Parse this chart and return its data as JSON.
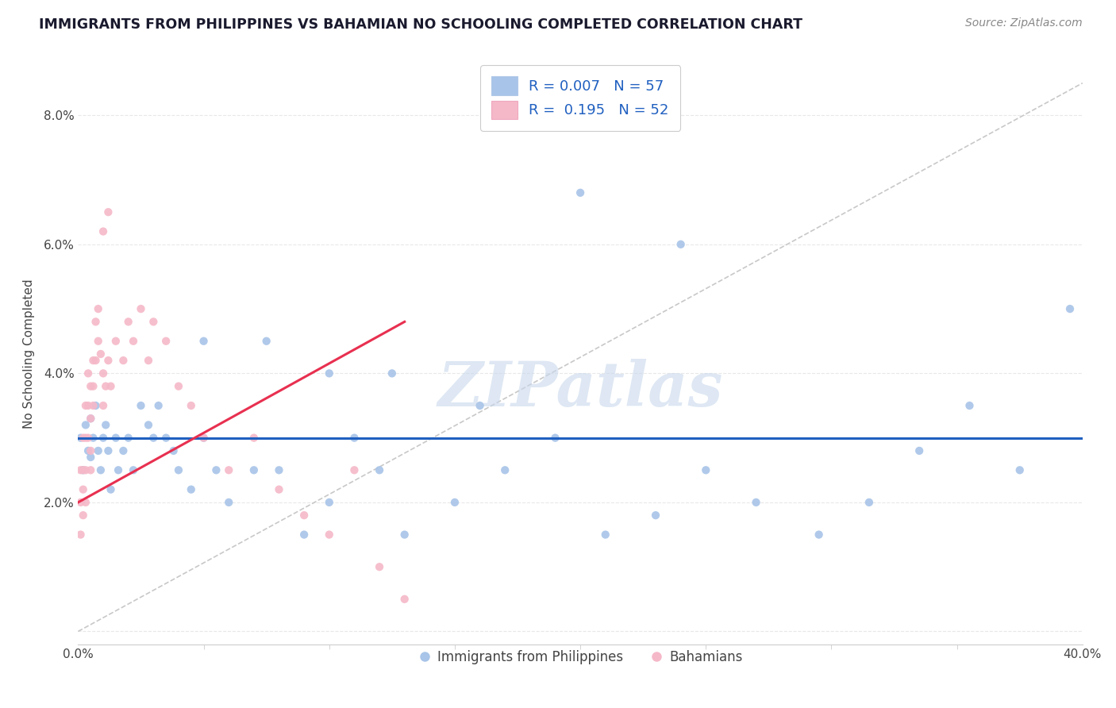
{
  "title": "IMMIGRANTS FROM PHILIPPINES VS BAHAMIAN NO SCHOOLING COMPLETED CORRELATION CHART",
  "source_text": "Source: ZipAtlas.com",
  "ylabel": "No Schooling Completed",
  "xlim": [
    0.0,
    0.4
  ],
  "ylim": [
    -0.002,
    0.088
  ],
  "ytick_vals": [
    0.0,
    0.02,
    0.04,
    0.06,
    0.08
  ],
  "ytick_labels": [
    "",
    "2.0%",
    "4.0%",
    "6.0%",
    "8.0%"
  ],
  "xtick_vals": [
    0.0,
    0.4
  ],
  "xtick_labels": [
    "0.0%",
    "40.0%"
  ],
  "scatter_blue_color": "#a8c4e8",
  "scatter_pink_color": "#f5b8c8",
  "trend_blue_color": "#2060c0",
  "trend_pink_color": "#e83050",
  "ref_line_color": "#c8c8c8",
  "background_color": "#ffffff",
  "grid_color": "#e8e8e8",
  "title_color": "#1a1a2e",
  "source_color": "#888888",
  "watermark_text": "ZIPatlas",
  "legend_label1": "R = 0.007   N = 57",
  "legend_label2": "R =  0.195   N = 52",
  "legend_text_color": "#2060c0",
  "blue_x": [
    0.001,
    0.002,
    0.003,
    0.004,
    0.005,
    0.005,
    0.006,
    0.007,
    0.008,
    0.009,
    0.01,
    0.011,
    0.012,
    0.013,
    0.015,
    0.016,
    0.018,
    0.02,
    0.022,
    0.025,
    0.028,
    0.03,
    0.032,
    0.035,
    0.038,
    0.04,
    0.045,
    0.05,
    0.055,
    0.06,
    0.07,
    0.08,
    0.09,
    0.1,
    0.11,
    0.12,
    0.13,
    0.15,
    0.17,
    0.19,
    0.21,
    0.23,
    0.25,
    0.27,
    0.295,
    0.315,
    0.335,
    0.355,
    0.375,
    0.395,
    0.05,
    0.075,
    0.1,
    0.125,
    0.16,
    0.2,
    0.24
  ],
  "blue_y": [
    0.03,
    0.025,
    0.032,
    0.028,
    0.033,
    0.027,
    0.03,
    0.035,
    0.028,
    0.025,
    0.03,
    0.032,
    0.028,
    0.022,
    0.03,
    0.025,
    0.028,
    0.03,
    0.025,
    0.035,
    0.032,
    0.03,
    0.035,
    0.03,
    0.028,
    0.025,
    0.022,
    0.03,
    0.025,
    0.02,
    0.025,
    0.025,
    0.015,
    0.02,
    0.03,
    0.025,
    0.015,
    0.02,
    0.025,
    0.03,
    0.015,
    0.018,
    0.025,
    0.02,
    0.015,
    0.02,
    0.028,
    0.035,
    0.025,
    0.05,
    0.045,
    0.045,
    0.04,
    0.04,
    0.035,
    0.068,
    0.06
  ],
  "pink_x": [
    0.001,
    0.001,
    0.001,
    0.002,
    0.002,
    0.002,
    0.002,
    0.003,
    0.003,
    0.003,
    0.003,
    0.004,
    0.004,
    0.004,
    0.005,
    0.005,
    0.005,
    0.005,
    0.006,
    0.006,
    0.006,
    0.007,
    0.007,
    0.008,
    0.008,
    0.009,
    0.01,
    0.01,
    0.011,
    0.012,
    0.013,
    0.015,
    0.018,
    0.02,
    0.022,
    0.025,
    0.028,
    0.03,
    0.035,
    0.04,
    0.045,
    0.05,
    0.06,
    0.07,
    0.08,
    0.09,
    0.1,
    0.11,
    0.12,
    0.13,
    0.01,
    0.012
  ],
  "pink_y": [
    0.025,
    0.02,
    0.015,
    0.03,
    0.025,
    0.022,
    0.018,
    0.035,
    0.03,
    0.025,
    0.02,
    0.04,
    0.035,
    0.03,
    0.038,
    0.033,
    0.028,
    0.025,
    0.042,
    0.038,
    0.035,
    0.048,
    0.042,
    0.05,
    0.045,
    0.043,
    0.04,
    0.035,
    0.038,
    0.042,
    0.038,
    0.045,
    0.042,
    0.048,
    0.045,
    0.05,
    0.042,
    0.048,
    0.045,
    0.038,
    0.035,
    0.03,
    0.025,
    0.03,
    0.022,
    0.018,
    0.015,
    0.025,
    0.01,
    0.005,
    0.062,
    0.065
  ],
  "blue_trend_y0": 0.03,
  "blue_trend_y1": 0.03,
  "pink_trend_x0": 0.0,
  "pink_trend_y0": 0.02,
  "pink_trend_x1": 0.13,
  "pink_trend_y1": 0.048
}
